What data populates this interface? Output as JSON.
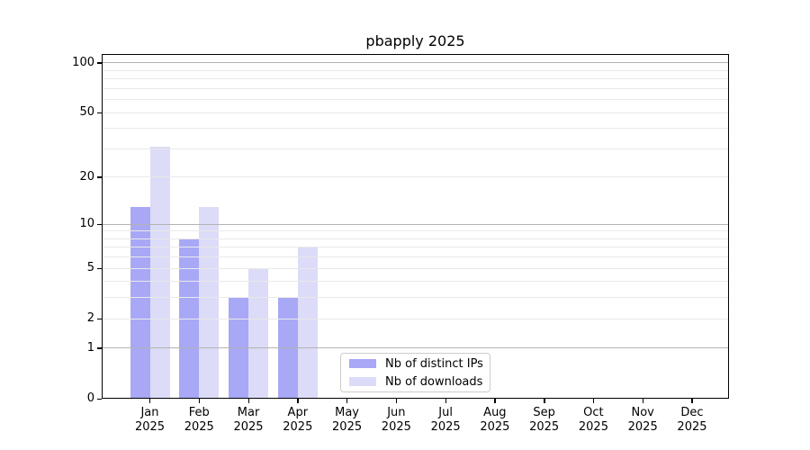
{
  "chart_data": {
    "type": "bar",
    "title": "pbapply 2025",
    "categories": [
      "Jan",
      "Feb",
      "Mar",
      "Apr",
      "May",
      "Jun",
      "Jul",
      "Aug",
      "Sep",
      "Oct",
      "Nov",
      "Dec"
    ],
    "x_year_label": "2025",
    "series": [
      {
        "name": "Nb of distinct IPs",
        "color": "#a8a8f6",
        "values": [
          13,
          8,
          3,
          3,
          0,
          0,
          0,
          0,
          0,
          0,
          0,
          0
        ]
      },
      {
        "name": "Nb of downloads",
        "color": "#dcdcf8",
        "values": [
          31,
          13,
          5,
          7,
          0,
          0,
          0,
          0,
          0,
          0,
          0,
          0
        ]
      }
    ],
    "yscale": "log1p",
    "ylim": [
      0,
      113
    ],
    "yticks": [
      0,
      1,
      2,
      5,
      10,
      20,
      50,
      100
    ],
    "major_gridlines": [
      1,
      10,
      100
    ],
    "minor_gridlines": [
      2,
      3,
      4,
      5,
      6,
      7,
      8,
      9,
      20,
      30,
      40,
      50,
      60,
      70,
      80,
      90
    ],
    "legend_position": "lower center",
    "grid_on": true,
    "colors": {
      "major_grid": "#b3b3b3",
      "minor_grid": "#e9e9e9",
      "axis": "#000000",
      "background": "#ffffff",
      "text": "#000000"
    }
  }
}
